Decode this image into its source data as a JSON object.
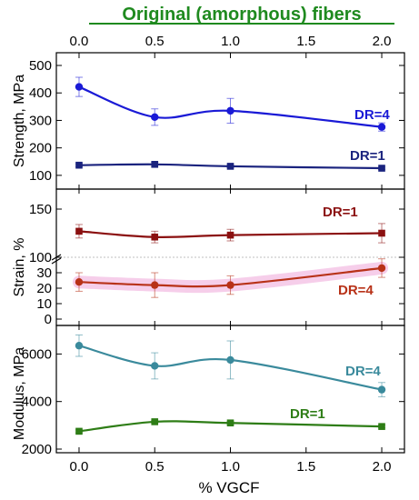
{
  "header": {
    "title": "Original (amorphous) fibers"
  },
  "colors": {
    "title": "#1f8a1f",
    "dr4_strength": "#1a1ad6",
    "dr1_strength": "#1a237e",
    "dr1_strain": "#8b1010",
    "dr4_strain": "#b83218",
    "dr4_strain_band": "#f5c6e6",
    "dr4_modulus": "#3a8a9c",
    "dr1_modulus": "#2e7d16"
  },
  "chart_data": {
    "type": "line",
    "xlabel": "% VGCF",
    "x_ticks": [
      "0.0",
      "0.5",
      "1.0",
      "1.5",
      "2.0"
    ],
    "xlim": [
      -0.15,
      2.15
    ],
    "panels": [
      {
        "ylabel": "Strength, MPa",
        "ylim": [
          50,
          500
        ],
        "y_ticks": [
          "100",
          "200",
          "300",
          "400",
          "500"
        ],
        "series": [
          {
            "name": "DR=4",
            "marker": "circle",
            "x": [
              0,
              0.5,
              1.0,
              2.0
            ],
            "y": [
              422,
              312,
              335,
              276
            ],
            "err": [
              35,
              30,
              45,
              15
            ]
          },
          {
            "name": "DR=1",
            "marker": "square",
            "x": [
              0,
              0.5,
              1.0,
              2.0
            ],
            "y": [
              137,
              140,
              133,
              126
            ],
            "err": [
              5,
              8,
              5,
              4
            ]
          }
        ]
      },
      {
        "ylabel": "Strain, %",
        "axis_break": true,
        "ylim_lower": [
          0,
          40
        ],
        "ylim_upper": [
          100,
          160
        ],
        "y_ticks_lower": [
          "0",
          "10",
          "20",
          "30"
        ],
        "y_ticks_upper": [
          "100",
          "150"
        ],
        "series": [
          {
            "name": "DR=1",
            "marker": "square",
            "x": [
              0,
              0.5,
              1.0,
              2.0
            ],
            "y": [
              127,
              121,
              123,
              125
            ],
            "err": [
              7,
              6,
              6,
              10
            ]
          },
          {
            "name": "DR=4",
            "marker": "circle",
            "x": [
              0,
              0.5,
              1.0,
              2.0
            ],
            "y": [
              24,
              22,
              22,
              33
            ],
            "err": [
              6,
              8,
              6,
              6
            ]
          }
        ]
      },
      {
        "ylabel": "Modulus, MPa",
        "ylim": [
          2000,
          7200
        ],
        "y_ticks": [
          "2000",
          "4000",
          "6000"
        ],
        "series": [
          {
            "name": "DR=4",
            "marker": "circle",
            "x": [
              0,
              0.5,
              1.0,
              2.0
            ],
            "y": [
              6350,
              5500,
              5750,
              4500
            ],
            "err": [
              450,
              550,
              800,
              300
            ]
          },
          {
            "name": "DR=1",
            "marker": "square",
            "x": [
              0,
              0.5,
              1.0,
              2.0
            ],
            "y": [
              2750,
              3150,
              3100,
              2950
            ],
            "err": [
              60,
              60,
              60,
              60
            ]
          }
        ]
      }
    ]
  }
}
